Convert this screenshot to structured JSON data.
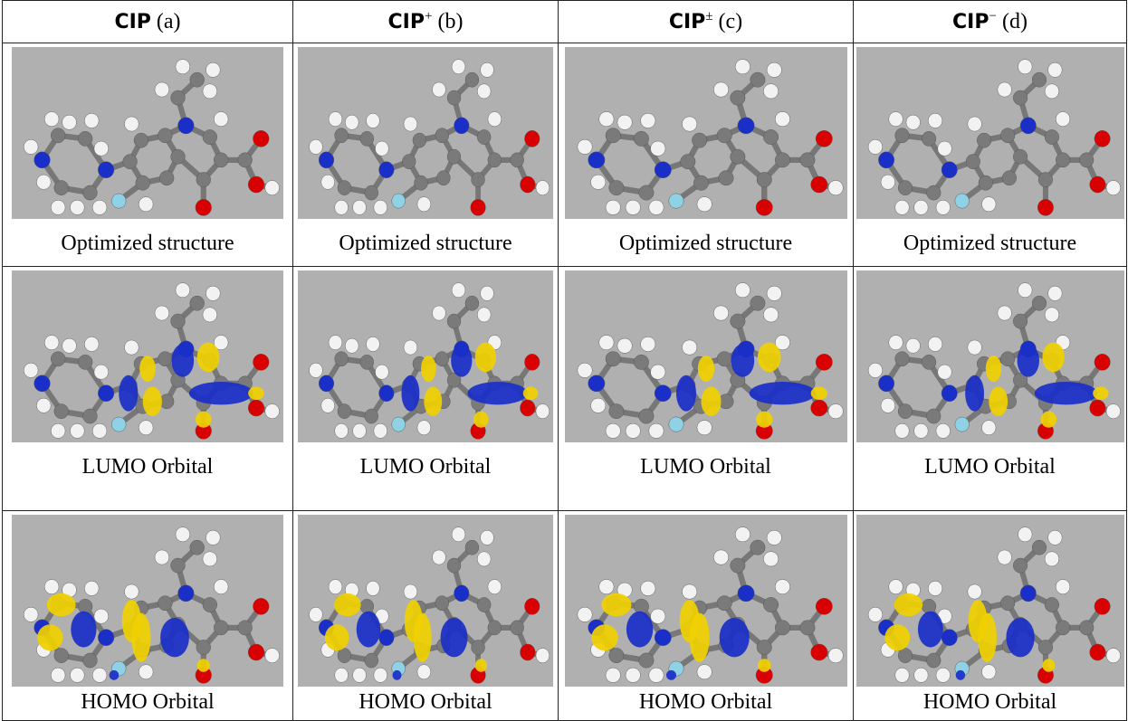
{
  "table": {
    "header": [
      {
        "name": "CIP",
        "label": "(a)"
      },
      {
        "name": "CIP",
        "sup": "+",
        "label": "(b)"
      },
      {
        "name": "CIP",
        "sup": "±",
        "label": "(c)"
      },
      {
        "name": "CIP",
        "sup": "−",
        "label": "(d)"
      }
    ],
    "rows": [
      [
        "Optimized structure",
        "Optimized structure",
        "Optimized structure",
        "Optimized structure"
      ],
      [
        "LUMO Orbital",
        "LUMO Orbital",
        "LUMO Orbital",
        "LUMO Orbital"
      ],
      [
        "HOMO Orbital",
        "HOMO Orbital",
        "HOMO Orbital",
        "HOMO Orbital"
      ]
    ]
  }
}
